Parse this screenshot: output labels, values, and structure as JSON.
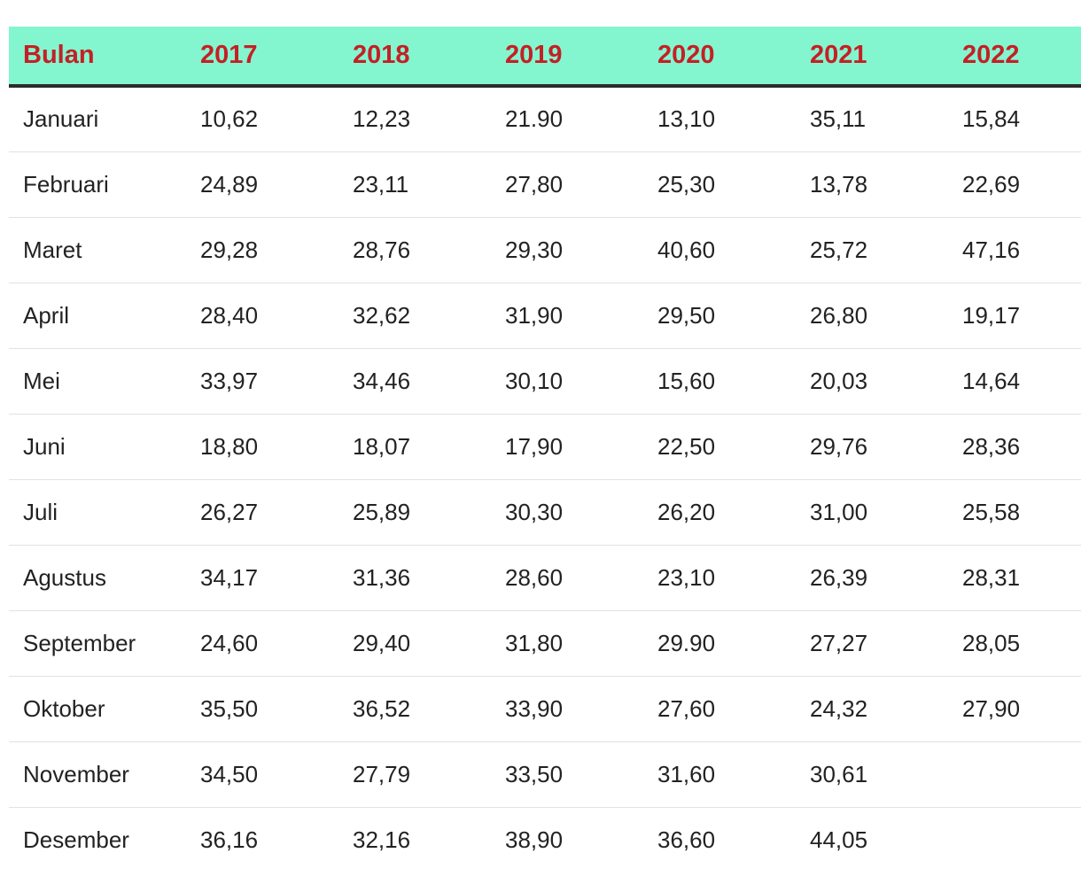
{
  "table": {
    "headers": [
      "Bulan",
      "2017",
      "2018",
      "2019",
      "2020",
      "2021",
      "2022"
    ],
    "rows": [
      [
        "Januari",
        "10,62",
        "12,23",
        "21.90",
        "13,10",
        "35,11",
        "15,84"
      ],
      [
        "Februari",
        "24,89",
        "23,11",
        "27,80",
        "25,30",
        "13,78",
        "22,69"
      ],
      [
        "Maret",
        "29,28",
        "28,76",
        "29,30",
        "40,60",
        "25,72",
        "47,16"
      ],
      [
        "April",
        "28,40",
        "32,62",
        "31,90",
        "29,50",
        "26,80",
        "19,17"
      ],
      [
        "Mei",
        "33,97",
        "34,46",
        "30,10",
        "15,60",
        "20,03",
        "14,64"
      ],
      [
        "Juni",
        "18,80",
        "18,07",
        "17,90",
        "22,50",
        "29,76",
        "28,36"
      ],
      [
        "Juli",
        "26,27",
        "25,89",
        "30,30",
        "26,20",
        "31,00",
        "25,58"
      ],
      [
        "Agustus",
        "34,17",
        "31,36",
        "28,60",
        "23,10",
        "26,39",
        "28,31"
      ],
      [
        "September",
        "24,60",
        "29,40",
        "31,80",
        "29.90",
        "27,27",
        "28,05"
      ],
      [
        "Oktober",
        "35,50",
        "36,52",
        "33,90",
        "27,60",
        "24,32",
        "27,90"
      ],
      [
        "November",
        "34,50",
        "27,79",
        "33,50",
        "31,60",
        "30,61",
        ""
      ],
      [
        "Desember",
        "36,16",
        "32,16",
        "38,90",
        "36,60",
        "44,05",
        ""
      ]
    ]
  },
  "colors": {
    "header_background": "#84f6cf",
    "header_text": "#c42026",
    "header_rule": "#2b2b2b",
    "row_divider": "#e2e2e2"
  }
}
